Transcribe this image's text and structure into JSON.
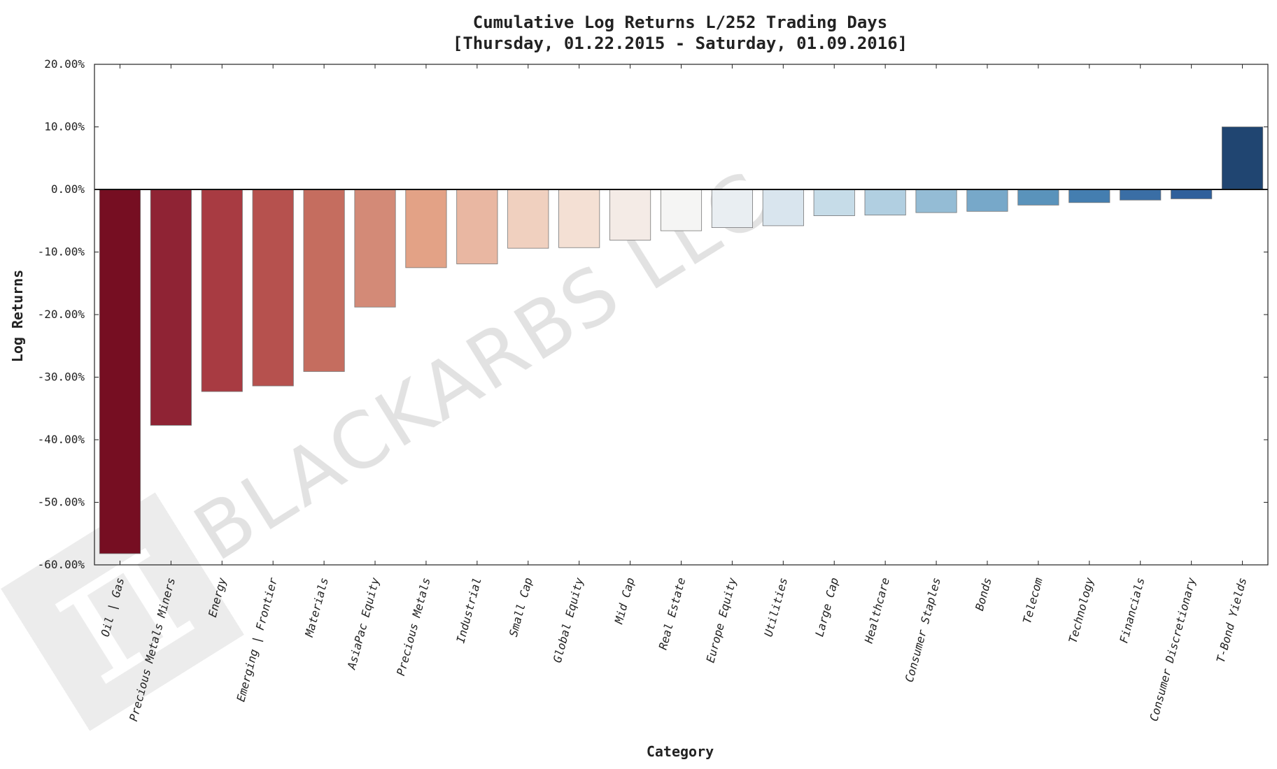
{
  "chart_data": {
    "type": "bar",
    "title": "Cumulative Log Returns L/252 Trading Days",
    "subtitle": "[Thursday, 01.22.2015 - Saturday, 01.09.2016]",
    "xlabel": "Category",
    "ylabel": "Log Returns",
    "ylim": [
      -0.6,
      0.2
    ],
    "yticks": [
      0.2,
      0.1,
      0.0,
      -0.1,
      -0.2,
      -0.3,
      -0.4,
      -0.5,
      -0.6
    ],
    "ytick_labels": [
      "20.00%",
      "10.00%",
      "0.00%",
      "-10.00%",
      "-20.00%",
      "-30.00%",
      "-40.00%",
      "-50.00%",
      "-60.00%"
    ],
    "grid": false,
    "categories": [
      "Oil | Gas",
      "Precious Metals Miners",
      "Energy",
      "Emerging | Frontier",
      "Materials",
      "AsiaPac Equity",
      "Precious Metals",
      "Industrial",
      "Small Cap",
      "Global Equity",
      "Mid Cap",
      "Real Estate",
      "Europe Equity",
      "Utilities",
      "Large Cap",
      "Healthcare",
      "Consumer Staples",
      "Bonds",
      "Telecom",
      "Technology",
      "Financials",
      "Consumer Discretionary",
      "T-Bond Yields"
    ],
    "values": [
      -0.582,
      -0.377,
      -0.323,
      -0.314,
      -0.291,
      -0.188,
      -0.125,
      -0.119,
      -0.094,
      -0.093,
      -0.081,
      -0.066,
      -0.061,
      -0.058,
      -0.042,
      -0.041,
      -0.037,
      -0.035,
      -0.025,
      -0.021,
      -0.017,
      -0.015,
      0.1
    ],
    "colors": [
      "#760e22",
      "#8f2334",
      "#a83b42",
      "#b6514e",
      "#c56d5f",
      "#d38a77",
      "#e3a286",
      "#e9b7a2",
      "#f0d0bf",
      "#f4e0d4",
      "#f4ebe6",
      "#f5f5f4",
      "#e9eef2",
      "#d9e5ee",
      "#c6dce8",
      "#b1cfe1",
      "#94bcd5",
      "#77a8c9",
      "#5a93bb",
      "#447eb0",
      "#3a6ea5",
      "#30609b",
      "#204571"
    ]
  },
  "watermark": {
    "text": "BLACKARBS LLC",
    "logo": "pi-symbol-icon"
  }
}
